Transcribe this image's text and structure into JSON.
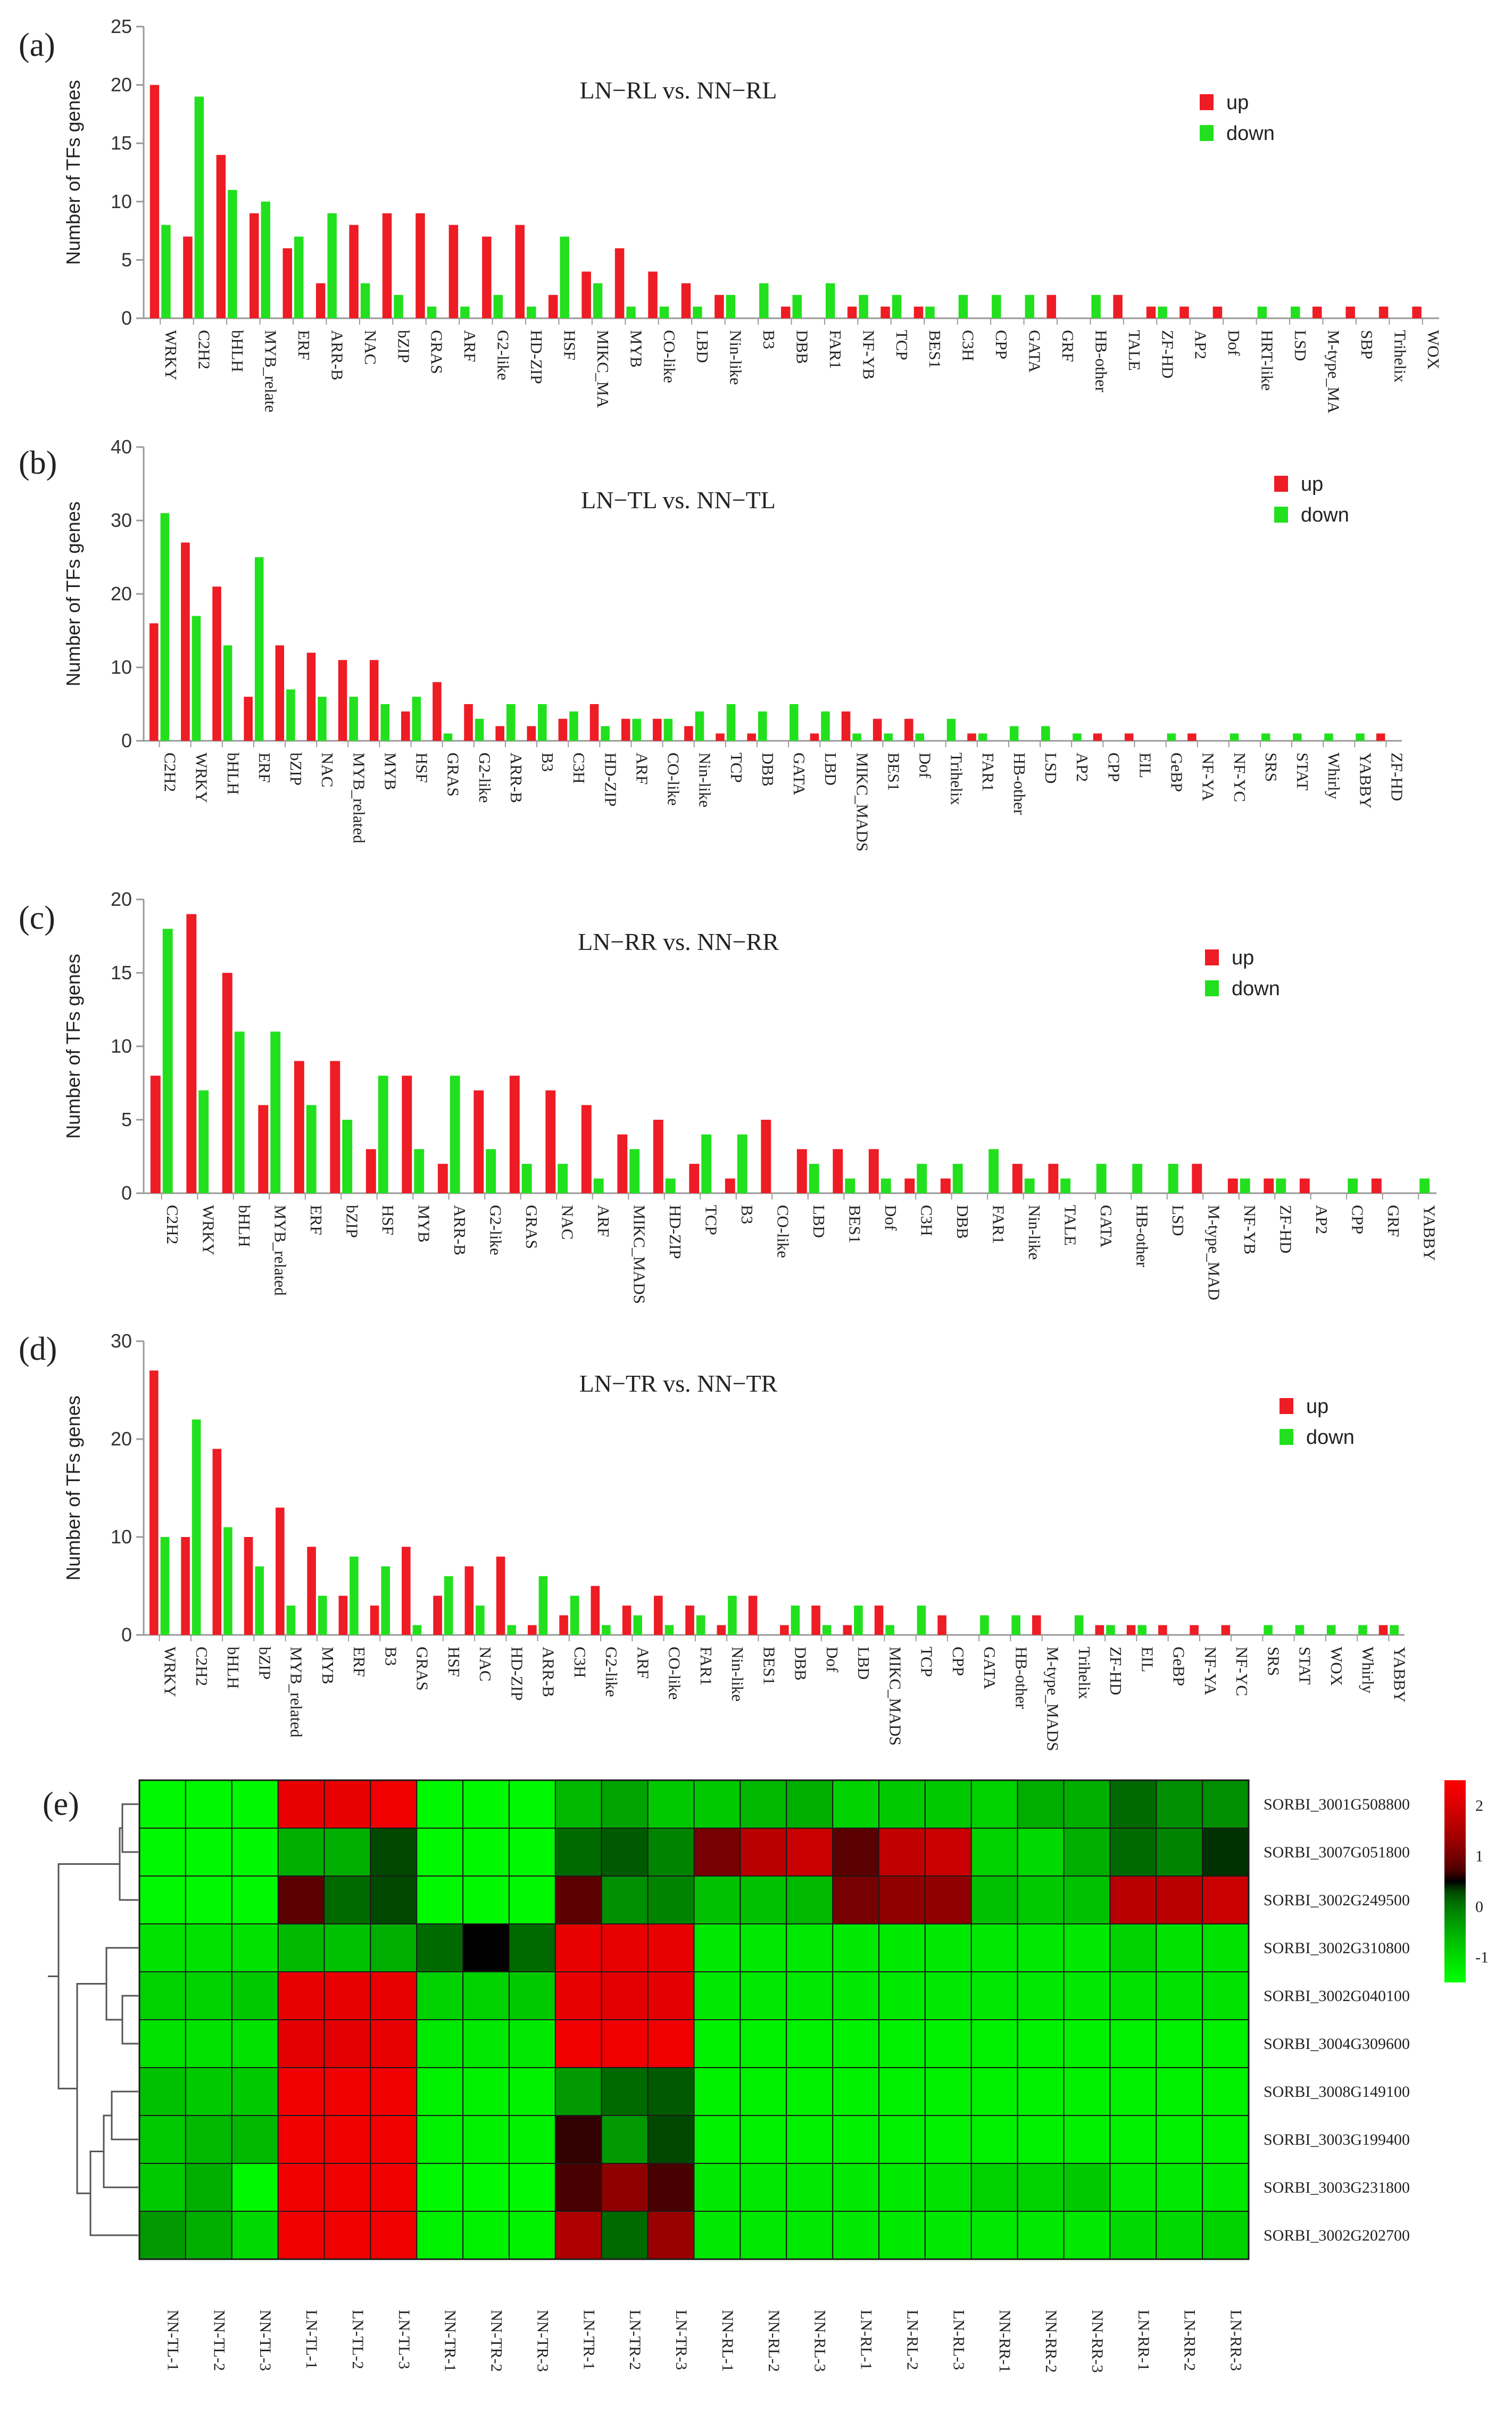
{
  "chart_data": [
    {
      "type": "bar",
      "panel_label": "(a)",
      "title": "LN−RL vs. NN−RL",
      "ylabel": "Number of TFs genes",
      "xlabel": "",
      "ylim": [
        0,
        25
      ],
      "yticks": [
        0,
        5,
        10,
        15,
        20,
        25
      ],
      "legend_position": "top-right",
      "categories": [
        "WRKY",
        "C2H2",
        "bHLH",
        "MYB_relate",
        "ERF",
        "ARR-B",
        "NAC",
        "bZIP",
        "GRAS",
        "ARF",
        "G2-like",
        "HD-ZIP",
        "HSF",
        "MIKC_MA",
        "MYB",
        "CO-like",
        "LBD",
        "Nin-like",
        "B3",
        "DBB",
        "FAR1",
        "NF-YB",
        "TCP",
        "BES1",
        "C3H",
        "CPP",
        "GATA",
        "GRF",
        "HB-other",
        "TALE",
        "ZF-HD",
        "AP2",
        "Dof",
        "HRT-like",
        "LSD",
        "M-type_MA",
        "SBP",
        "Trihelix",
        "WOX"
      ],
      "series": [
        {
          "name": "up",
          "color": "#ee1c24",
          "values": [
            20,
            7,
            14,
            9,
            6,
            3,
            8,
            9,
            9,
            8,
            7,
            8,
            2,
            4,
            6,
            4,
            3,
            2,
            0,
            1,
            0,
            1,
            1,
            1,
            0,
            0,
            0,
            2,
            0,
            2,
            1,
            1,
            1,
            0,
            0,
            1,
            1,
            1,
            1
          ]
        },
        {
          "name": "down",
          "color": "#22e01e",
          "values": [
            8,
            19,
            11,
            10,
            7,
            9,
            3,
            2,
            1,
            1,
            2,
            1,
            7,
            3,
            1,
            1,
            1,
            2,
            3,
            2,
            3,
            2,
            2,
            1,
            2,
            2,
            2,
            0,
            2,
            0,
            1,
            0,
            0,
            1,
            1,
            0,
            0,
            0,
            0
          ]
        }
      ]
    },
    {
      "type": "bar",
      "panel_label": "(b)",
      "title": "LN−TL vs. NN−TL",
      "ylabel": "Number of TFs genes",
      "xlabel": "",
      "ylim": [
        0,
        40
      ],
      "yticks": [
        0,
        10,
        20,
        30,
        40
      ],
      "legend_position": "top-right",
      "categories": [
        "C2H2",
        "WRKY",
        "bHLH",
        "ERF",
        "bZIP",
        "NAC",
        "MYB_related",
        "MYB",
        "HSF",
        "GRAS",
        "G2-like",
        "ARR-B",
        "B3",
        "C3H",
        "HD-ZIP",
        "ARF",
        "CO-like",
        "Nin-like",
        "TCP",
        "DBB",
        "GATA",
        "LBD",
        "MIKC_MADS",
        "BES1",
        "Dof",
        "Trihelix",
        "FAR1",
        "HB-other",
        "LSD",
        "AP2",
        "CPP",
        "EIL",
        "GeBP",
        "NF-YA",
        "NF-YC",
        "SRS",
        "STAT",
        "Whirly",
        "YABBY",
        "ZF-HD"
      ],
      "series": [
        {
          "name": "up",
          "color": "#ee1c24",
          "values": [
            16,
            27,
            21,
            6,
            13,
            12,
            11,
            11,
            4,
            8,
            5,
            2,
            2,
            3,
            5,
            3,
            3,
            2,
            1,
            1,
            0,
            1,
            4,
            3,
            3,
            0,
            1,
            0,
            0,
            0,
            1,
            1,
            0,
            1,
            0,
            0,
            0,
            0,
            0,
            1
          ]
        },
        {
          "name": "down",
          "color": "#22e01e",
          "values": [
            31,
            17,
            13,
            25,
            7,
            6,
            6,
            5,
            6,
            1,
            3,
            5,
            5,
            4,
            2,
            3,
            3,
            4,
            5,
            4,
            5,
            4,
            1,
            1,
            1,
            3,
            1,
            2,
            2,
            1,
            0,
            0,
            1,
            0,
            1,
            1,
            1,
            1,
            1,
            0
          ]
        }
      ]
    },
    {
      "type": "bar",
      "panel_label": "(c)",
      "title": "LN−RR vs. NN−RR",
      "ylabel": "Number of TFs genes",
      "xlabel": "",
      "ylim": [
        0,
        20
      ],
      "yticks": [
        0,
        5,
        10,
        15,
        20
      ],
      "legend_position": "top-right",
      "categories": [
        "C2H2",
        "WRKY",
        "bHLH",
        "MYB_related",
        "ERF",
        "bZIP",
        "HSF",
        "MYB",
        "ARR-B",
        "G2-like",
        "GRAS",
        "NAC",
        "ARF",
        "MIKC_MADS",
        "HD-ZIP",
        "TCP",
        "B3",
        "CO-like",
        "LBD",
        "BES1",
        "Dof",
        "C3H",
        "DBB",
        "FAR1",
        "Nin-like",
        "TALE",
        "GATA",
        "HB-other",
        "LSD",
        "M-type_MAD",
        "NF-YB",
        "ZF-HD",
        "AP2",
        "CPP",
        "GRF",
        "YABBY"
      ],
      "series": [
        {
          "name": "up",
          "color": "#ee1c24",
          "values": [
            8,
            19,
            15,
            6,
            9,
            9,
            3,
            8,
            2,
            7,
            8,
            7,
            6,
            4,
            5,
            2,
            1,
            5,
            3,
            3,
            3,
            1,
            1,
            0,
            2,
            2,
            0,
            0,
            0,
            2,
            1,
            1,
            1,
            0,
            1,
            0
          ]
        },
        {
          "name": "down",
          "color": "#22e01e",
          "values": [
            18,
            7,
            11,
            11,
            6,
            5,
            8,
            3,
            8,
            3,
            2,
            2,
            1,
            3,
            1,
            4,
            4,
            0,
            2,
            1,
            1,
            2,
            2,
            3,
            1,
            1,
            2,
            2,
            2,
            0,
            1,
            1,
            0,
            1,
            0,
            1
          ]
        }
      ]
    },
    {
      "type": "bar",
      "panel_label": "(d)",
      "title": "LN−TR vs. NN−TR",
      "ylabel": "Number of TFs genes",
      "xlabel": "",
      "ylim": [
        0,
        30
      ],
      "yticks": [
        0,
        10,
        20,
        30
      ],
      "legend_position": "top-right",
      "categories": [
        "WRKY",
        "C2H2",
        "bHLH",
        "bZIP",
        "MYB_related",
        "MYB",
        "ERF",
        "B3",
        "GRAS",
        "HSF",
        "NAC",
        "HD-ZIP",
        "ARR-B",
        "C3H",
        "G2-like",
        "ARF",
        "CO-like",
        "FAR1",
        "Nin-like",
        "BES1",
        "DBB",
        "Dof",
        "LBD",
        "MIKC_MADS",
        "TCP",
        "CPP",
        "GATA",
        "HB-other",
        "M-type_MADS",
        "Trihelix",
        "ZF-HD",
        "EIL",
        "GeBP",
        "NF-YA",
        "NF-YC",
        "SRS",
        "STAT",
        "WOX",
        "Whirly",
        "YABBY"
      ],
      "series": [
        {
          "name": "up",
          "color": "#ee1c24",
          "values": [
            27,
            10,
            19,
            10,
            13,
            9,
            4,
            3,
            9,
            4,
            7,
            8,
            1,
            2,
            5,
            3,
            4,
            3,
            1,
            4,
            1,
            3,
            1,
            3,
            0,
            2,
            0,
            0,
            2,
            0,
            1,
            1,
            1,
            1,
            1,
            0,
            0,
            0,
            0,
            1
          ]
        },
        {
          "name": "down",
          "color": "#22e01e",
          "values": [
            10,
            22,
            11,
            7,
            3,
            4,
            8,
            7,
            1,
            6,
            3,
            1,
            6,
            4,
            1,
            2,
            1,
            2,
            4,
            0,
            3,
            1,
            3,
            1,
            3,
            0,
            2,
            2,
            0,
            2,
            1,
            1,
            0,
            0,
            0,
            1,
            1,
            1,
            1,
            1
          ]
        }
      ]
    },
    {
      "type": "heatmap",
      "panel_label": "(e)",
      "title": "",
      "columns": [
        "NN-TL-1",
        "NN-TL-2",
        "NN-TL-3",
        "LN-TL-1",
        "LN-TL-2",
        "LN-TL-3",
        "NN-TR-1",
        "NN-TR-2",
        "NN-TR-3",
        "LN-TR-1",
        "LN-TR-2",
        "LN-TR-3",
        "NN-RL-1",
        "NN-RL-2",
        "NN-RL-3",
        "LN-RL-1",
        "LN-RL-2",
        "LN-RL-3",
        "NN-RR-1",
        "NN-RR-2",
        "NN-RR-3",
        "LN-RR-1",
        "LN-RR-2",
        "LN-RR-3"
      ],
      "rows": [
        "SORBI_3001G508800",
        "SORBI_3007G051800",
        "SORBI_3002G249500",
        "SORBI_3002G310800",
        "SORBI_3002G040100",
        "SORBI_3004G309600",
        "SORBI_3008G149100",
        "SORBI_3003G199400",
        "SORBI_3003G231800",
        "SORBI_3002G202700"
      ],
      "color_scale": {
        "min": -1.5,
        "max": 2.5,
        "low": "#00ff00",
        "mid": "#000000",
        "high": "#ff0000",
        "ticks": [
          "2",
          "1",
          "0",
          "-1"
        ],
        "tick_values": [
          2,
          1,
          0,
          -1
        ]
      },
      "values": [
        [
          -1.4,
          -1.4,
          -1.4,
          2.2,
          2.2,
          2.3,
          -1.4,
          -1.4,
          -1.4,
          -0.6,
          -0.4,
          -0.8,
          -0.8,
          -0.6,
          -0.5,
          -0.9,
          -0.8,
          -0.8,
          -0.9,
          -0.5,
          -0.5,
          0.1,
          -0.2,
          -0.2
        ],
        [
          -1.4,
          -1.4,
          -1.4,
          -0.5,
          -0.5,
          0.3,
          -1.4,
          -1.4,
          -1.4,
          0.1,
          0.2,
          -0.1,
          1.0,
          1.6,
          1.8,
          0.8,
          1.7,
          1.8,
          -0.9,
          -1.0,
          -0.5,
          0.1,
          -0.1,
          0.4
        ],
        [
          -1.4,
          -1.4,
          -1.4,
          0.8,
          0.1,
          0.3,
          -1.4,
          -1.4,
          -1.4,
          0.8,
          -0.2,
          -0.1,
          -0.7,
          -0.7,
          -0.6,
          1.0,
          1.2,
          1.2,
          -0.7,
          -0.8,
          -0.7,
          1.6,
          1.6,
          1.8
        ],
        [
          -1.1,
          -1.1,
          -1.1,
          -0.6,
          -0.7,
          -0.5,
          0.1,
          0.5,
          0.1,
          2.2,
          2.2,
          2.2,
          -1.2,
          -1.2,
          -1.2,
          -1.2,
          -1.2,
          -1.2,
          -1.2,
          -1.2,
          -1.2,
          -0.9,
          -1.1,
          -1.1
        ],
        [
          -0.9,
          -0.9,
          -0.8,
          2.2,
          2.2,
          2.2,
          -0.9,
          -0.9,
          -0.8,
          2.2,
          2.1,
          2.1,
          -1.2,
          -1.2,
          -1.2,
          -1.2,
          -1.2,
          -1.2,
          -1.2,
          -1.2,
          -1.2,
          -1.1,
          -1.1,
          -1.1
        ],
        [
          -1.1,
          -1.1,
          -1.1,
          2.1,
          2.1,
          2.2,
          -1.2,
          -1.2,
          -1.2,
          2.3,
          2.3,
          2.3,
          -1.3,
          -1.3,
          -1.3,
          -1.3,
          -1.3,
          -1.3,
          -1.3,
          -1.3,
          -1.3,
          -1.3,
          -1.3,
          -1.3
        ],
        [
          -0.7,
          -0.8,
          -0.8,
          2.3,
          2.3,
          2.3,
          -1.3,
          -1.3,
          -1.3,
          -0.3,
          0.1,
          0.2,
          -1.3,
          -1.3,
          -1.3,
          -1.3,
          -1.3,
          -1.3,
          -1.3,
          -1.3,
          -1.3,
          -1.3,
          -1.3,
          -1.3
        ],
        [
          -0.8,
          -0.6,
          -0.6,
          2.3,
          2.3,
          2.3,
          -1.3,
          -1.3,
          -1.3,
          0.6,
          -0.3,
          0.3,
          -1.3,
          -1.3,
          -1.3,
          -1.3,
          -1.3,
          -1.3,
          -1.3,
          -1.3,
          -1.3,
          -1.3,
          -1.3,
          -1.3
        ],
        [
          -0.8,
          -0.5,
          -1.4,
          2.3,
          2.3,
          2.3,
          -1.4,
          -1.4,
          -1.4,
          0.7,
          1.2,
          0.7,
          -1.2,
          -1.2,
          -1.2,
          -1.2,
          -1.2,
          -1.1,
          -0.9,
          -0.9,
          -0.8,
          -1.2,
          -1.2,
          -1.2
        ],
        [
          -0.3,
          -0.5,
          -1.0,
          2.3,
          2.3,
          2.3,
          -1.3,
          -1.3,
          -1.3,
          1.5,
          0.1,
          1.3,
          -1.2,
          -1.2,
          -1.2,
          -1.2,
          -1.2,
          -1.2,
          -1.2,
          -1.2,
          -1.2,
          -1.0,
          -1.0,
          -0.9
        ]
      ],
      "row_dendrogram": [
        [
          0,
          1
        ],
        [
          10,
          2
        ],
        [
          4,
          5
        ],
        [
          12,
          3
        ],
        [
          6,
          7
        ],
        [
          14,
          8
        ],
        [
          15,
          9
        ],
        [
          13,
          16
        ],
        [
          11,
          17
        ]
      ]
    }
  ]
}
